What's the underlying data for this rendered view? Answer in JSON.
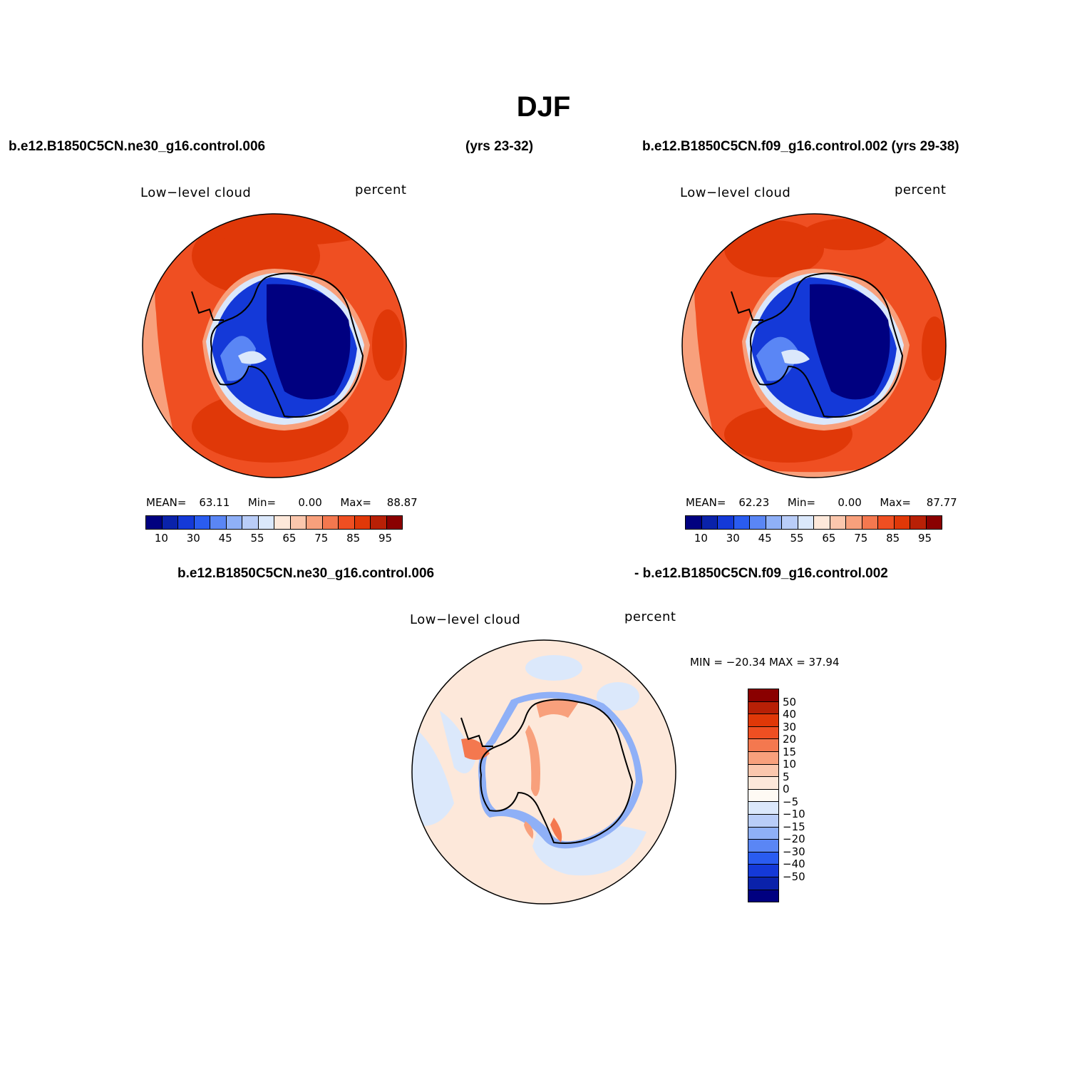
{
  "title": "DJF",
  "header": {
    "left_case": "b.e12.B1850C5CN.ne30_g16.control.006",
    "left_years": "(yrs 23-32)",
    "right_case": "b.e12.B1850C5CN.f09_g16.control.002 (yrs 29-38)"
  },
  "diff_header": {
    "left": "b.e12.B1850C5CN.ne30_g16.control.006",
    "right": "- b.e12.B1850C5CN.f09_g16.control.002"
  },
  "panels": [
    {
      "variable": "Low−level cloud",
      "units": "percent",
      "stats": {
        "mean_label": "MEAN=",
        "mean": "63.11",
        "min_label": "Min=",
        "min": "0.00",
        "max_label": "Max=",
        "max": "88.87"
      }
    },
    {
      "variable": "Low−level cloud",
      "units": "percent",
      "stats": {
        "mean_label": "MEAN=",
        "mean": "62.23",
        "min_label": "Min=",
        "min": "0.00",
        "max_label": "Max=",
        "max": "87.77"
      }
    },
    {
      "variable": "Low−level cloud",
      "units": "percent",
      "stats_text": "MIN = −20.34  MAX =   37.94"
    }
  ],
  "colorbar_main": {
    "colors": [
      "#000080",
      "#0a22aa",
      "#1439d8",
      "#2a5cf0",
      "#5a86f5",
      "#8fb0f7",
      "#b9cdf8",
      "#dbe8fb",
      "#fde8da",
      "#fbc7ad",
      "#f8a07c",
      "#f4784f",
      "#ef4f22",
      "#e03808",
      "#b82006",
      "#8a0000"
    ],
    "labels": [
      "10",
      "30",
      "45",
      "55",
      "65",
      "75",
      "85",
      "95"
    ]
  },
  "colorbar_diff": {
    "colors_top_to_bottom": [
      "#8a0000",
      "#b82006",
      "#e03808",
      "#ef4f22",
      "#f4784f",
      "#f8a07c",
      "#fbc7ad",
      "#fde8da",
      "#fefaf4",
      "#dbe8fb",
      "#b9cdf8",
      "#8fb0f7",
      "#5a86f5",
      "#2a5cf0",
      "#1439d8",
      "#0a22aa",
      "#000080"
    ],
    "labels_top_to_bottom": [
      "50",
      "40",
      "30",
      "20",
      "15",
      "10",
      "5",
      "0",
      "−5",
      "−10",
      "−15",
      "−20",
      "−30",
      "−40",
      "−50"
    ]
  },
  "map_colors": {
    "ocean_main": "#ef4f22",
    "ocean_deep": "#e03808",
    "ocean_light": "#f8a07c",
    "land_deep": "#000080",
    "land_mid": "#1439d8",
    "land_light": "#5a86f5",
    "diff_bg": "#fde8da",
    "diff_blue": "#dbe8fb",
    "diff_blue_mid": "#8fb0f7",
    "diff_red": "#f8a07c"
  }
}
